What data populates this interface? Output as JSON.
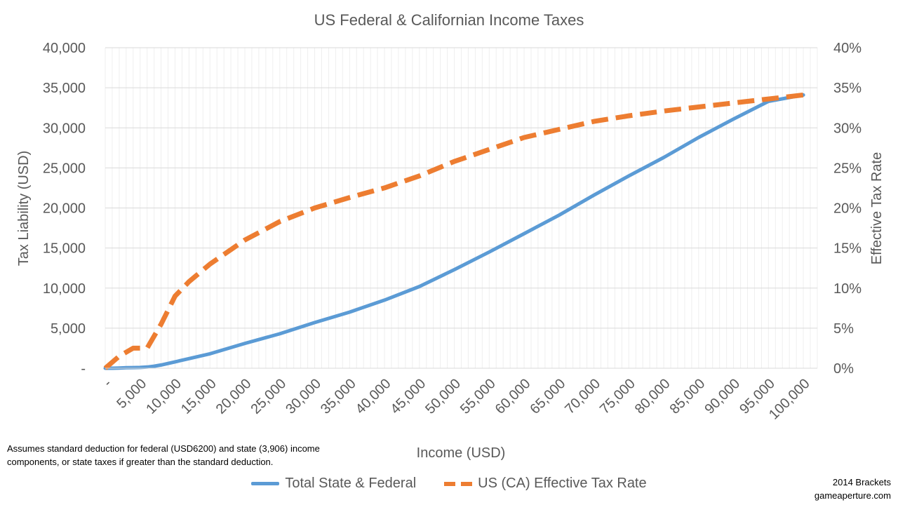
{
  "chart_data": {
    "type": "line",
    "title": "US Federal & Californian Income Taxes",
    "xlabel": "Income (USD)",
    "ylabel": "Tax Liability (USD)",
    "y2label": "Effective Tax Rate",
    "ylim": [
      0,
      40000
    ],
    "y2lim": [
      0,
      40
    ],
    "grid": true,
    "x_ticks": [
      "-",
      "5,000",
      "10,000",
      "15,000",
      "20,000",
      "25,000",
      "30,000",
      "35,000",
      "40,000",
      "45,000",
      "50,000",
      "55,000",
      "60,000",
      "65,000",
      "70,000",
      "75,000",
      "80,000",
      "85,000",
      "90,000",
      "95,000",
      "100,000"
    ],
    "y_ticks": [
      "-",
      "5,000",
      "10,000",
      "15,000",
      "20,000",
      "25,000",
      "30,000",
      "35,000",
      "40,000"
    ],
    "y2_ticks": [
      "0%",
      "5%",
      "10%",
      "15%",
      "20%",
      "25%",
      "30%",
      "35%",
      "40%"
    ],
    "series": [
      {
        "name": "Total State & Federal",
        "axis": "left",
        "color": "#5b9bd5",
        "style": "solid",
        "x": [
          0,
          1000,
          2000,
          3000,
          4000,
          5000,
          6000,
          7000,
          8000,
          10000,
          12000,
          15000,
          20000,
          25000,
          30000,
          35000,
          40000,
          45000,
          50000,
          55000,
          60000,
          65000,
          70000,
          75000,
          80000,
          85000,
          90000,
          95000,
          100000
        ],
        "values": [
          0,
          0,
          30,
          60,
          80,
          100,
          150,
          250,
          400,
          800,
          1200,
          1800,
          3100,
          4300,
          5700,
          7000,
          8500,
          10200,
          12300,
          14500,
          16800,
          19100,
          21600,
          24000,
          26300,
          28800,
          31100,
          33300,
          34100
        ]
      },
      {
        "name": "US (CA) Effective Tax Rate",
        "axis": "right",
        "color": "#ed7d31",
        "style": "dashed",
        "x": [
          0,
          2000,
          4000,
          6000,
          8000,
          10000,
          12000,
          15000,
          20000,
          25000,
          30000,
          35000,
          40000,
          45000,
          50000,
          55000,
          60000,
          65000,
          70000,
          75000,
          80000,
          85000,
          90000,
          95000,
          100000
        ],
        "values": [
          0,
          1.5,
          2.5,
          2.5,
          5.5,
          9.0,
          10.8,
          13.0,
          16.0,
          18.3,
          20.0,
          21.3,
          22.5,
          24.0,
          25.8,
          27.3,
          28.8,
          29.8,
          30.8,
          31.5,
          32.1,
          32.6,
          33.1,
          33.6,
          34.1
        ]
      }
    ]
  },
  "notes": {
    "assumption_line1": "Assumes standard deduction for federal (USD6200)  and state (3,906) income",
    "assumption_line2": "components,  or state taxes if greater than the  standard deduction.",
    "credit_line1": "2014 Brackets",
    "credit_line2": "gameaperture.com"
  }
}
